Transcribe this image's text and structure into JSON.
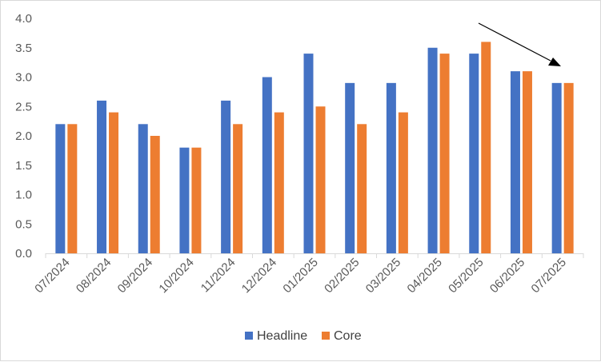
{
  "chart_data": {
    "type": "bar",
    "title": "",
    "xlabel": "",
    "ylabel": "",
    "categories": [
      "07/2024",
      "08/2024",
      "09/2024",
      "10/2024",
      "11/2024",
      "12/2024",
      "01/2025",
      "02/2025",
      "03/2025",
      "04/2025",
      "05/2025",
      "06/2025",
      "07/2025"
    ],
    "series": [
      {
        "name": "Headline",
        "color": "#4472c4",
        "values": [
          2.2,
          2.6,
          2.2,
          1.8,
          2.6,
          3.0,
          3.4,
          2.9,
          2.9,
          3.5,
          3.4,
          3.1,
          2.9
        ]
      },
      {
        "name": "Core",
        "color": "#ed7d31",
        "values": [
          2.2,
          2.4,
          2.0,
          1.8,
          2.2,
          2.4,
          2.5,
          2.2,
          2.4,
          3.4,
          3.6,
          3.1,
          2.9
        ]
      }
    ],
    "ylim": [
      0.0,
      4.0
    ],
    "yticks": [
      "0.0",
      "0.5",
      "1.0",
      "1.5",
      "2.0",
      "2.5",
      "3.0",
      "3.5",
      "4.0"
    ],
    "grid": false,
    "legend_position": "bottom",
    "annotation": "arrow pointing down-right toward 07/2025 bars"
  }
}
